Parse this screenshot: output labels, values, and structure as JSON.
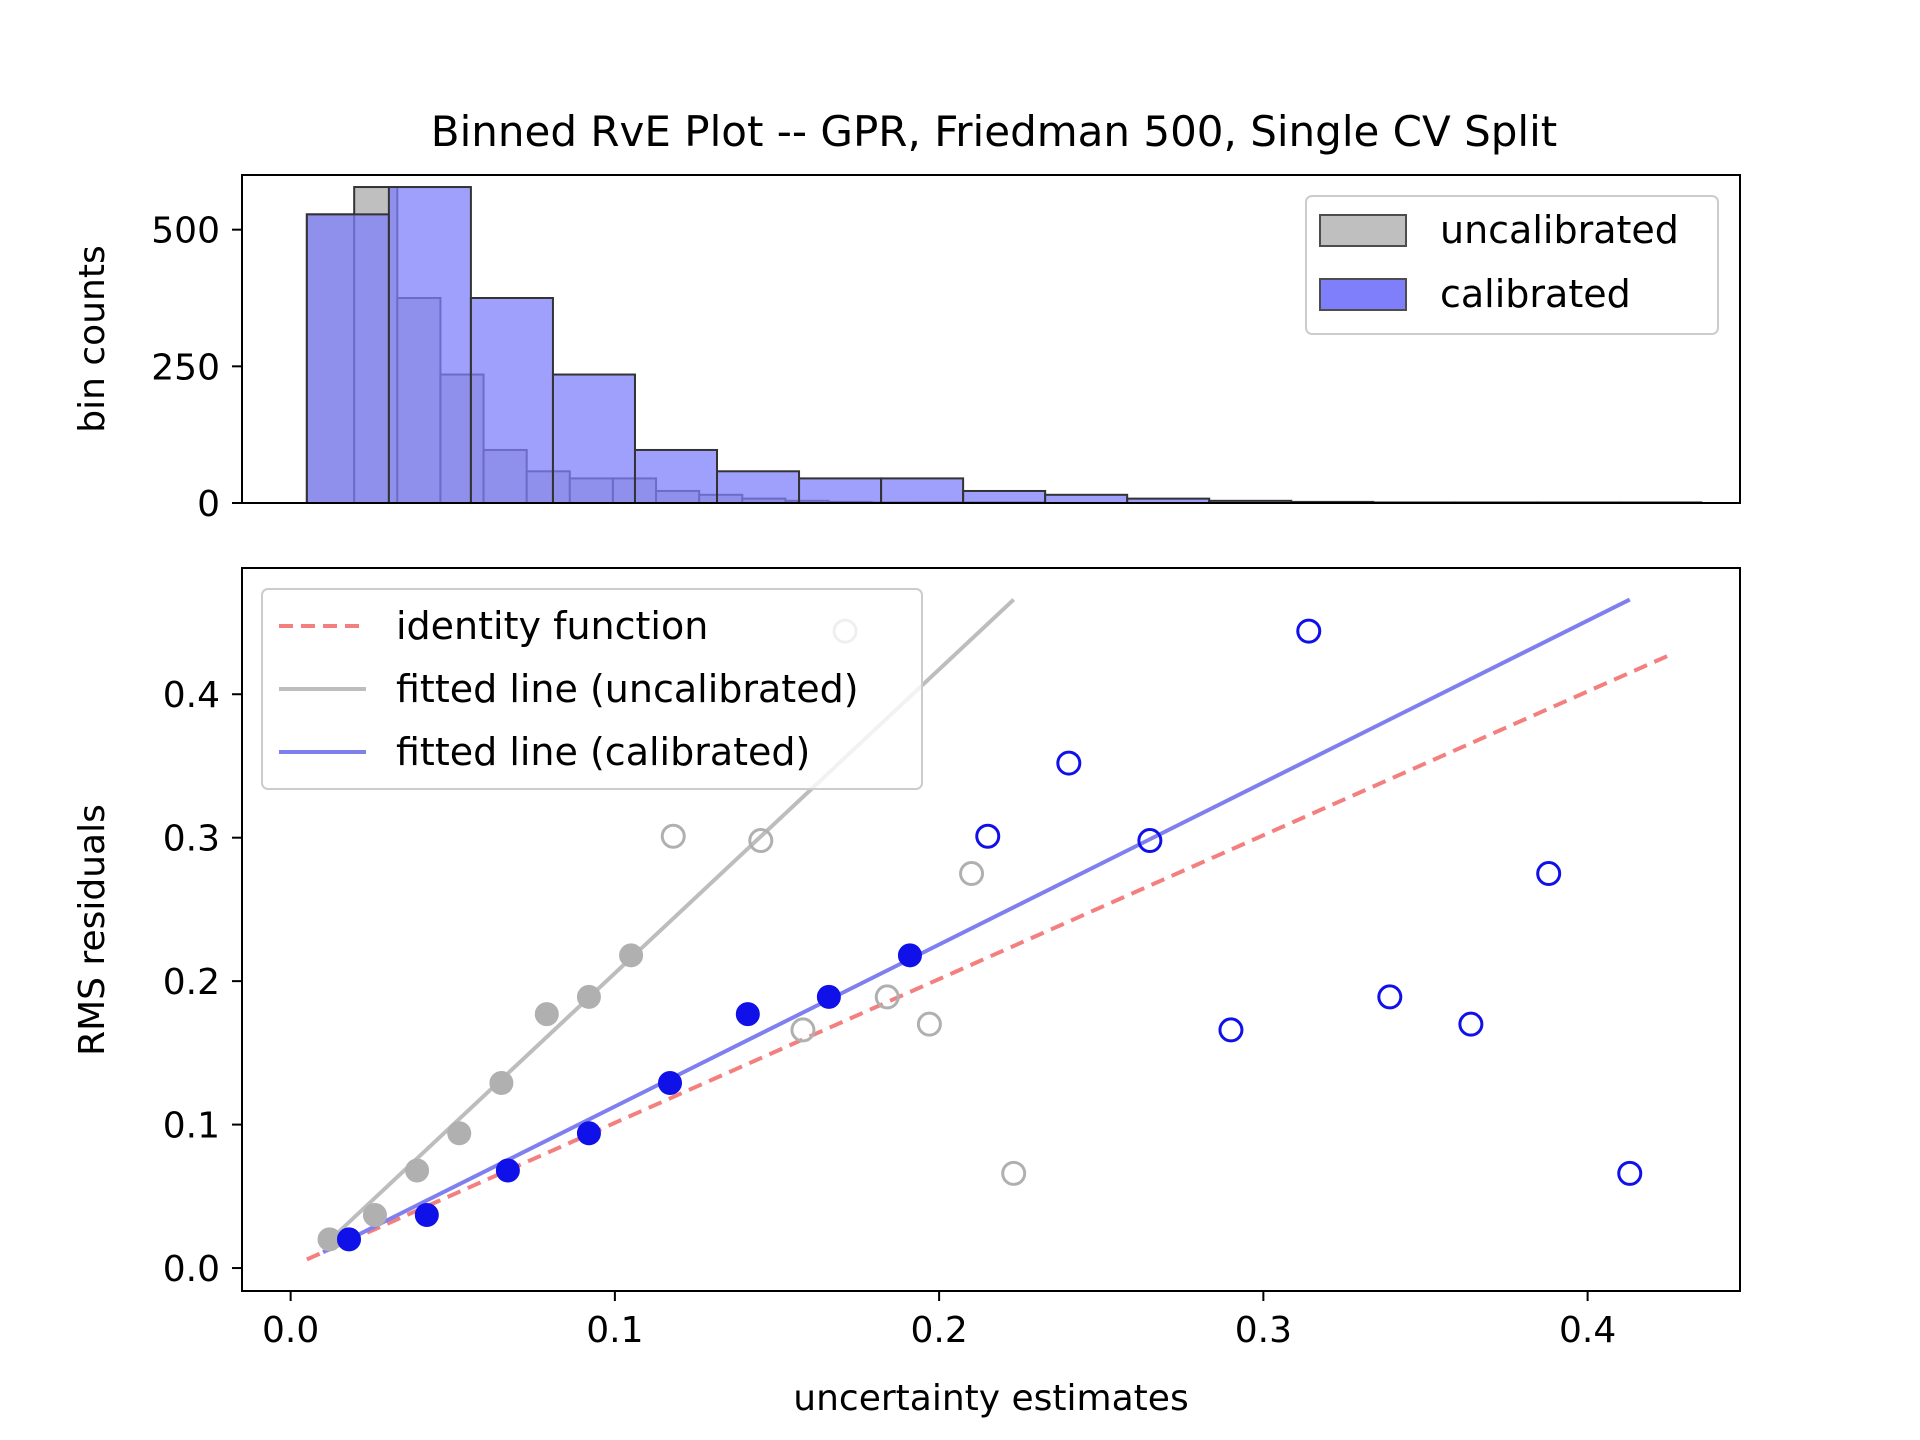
{
  "title": "Binned RvE Plot -- GPR, Friedman 500, Single CV Split",
  "colors": {
    "uncalibrated_fill": "#bfbfbf",
    "calibrated_fill": "#7f7ffb",
    "calibrated_point": "#1010e8",
    "uncalibrated_point": "#b0b0b0",
    "identity_line": "#f47f7f",
    "fit_uncalibrated": "#bdbdbd",
    "fit_calibrated": "#7f7ff0"
  },
  "chart_data": [
    {
      "type": "bar",
      "panel": "histogram",
      "xlabel": "",
      "ylabel": "bin counts",
      "ylim": [
        0,
        600
      ],
      "yticks": [
        0,
        250,
        500
      ],
      "xlim": [
        -0.015,
        0.447
      ],
      "legend": {
        "placement": "top-right",
        "entries": [
          {
            "label": "uncalibrated",
            "key": "uncalibrated"
          },
          {
            "label": "calibrated",
            "key": "calibrated"
          }
        ]
      },
      "series": [
        {
          "name": "uncalibrated",
          "bins": [
            {
              "x0": 0.005,
              "x1": 0.0196,
              "count": 528
            },
            {
              "x0": 0.0196,
              "x1": 0.0329,
              "count": 578
            },
            {
              "x0": 0.0329,
              "x1": 0.0462,
              "count": 375
            },
            {
              "x0": 0.0462,
              "x1": 0.0595,
              "count": 235
            },
            {
              "x0": 0.0595,
              "x1": 0.0728,
              "count": 97
            },
            {
              "x0": 0.0728,
              "x1": 0.0861,
              "count": 58
            },
            {
              "x0": 0.0861,
              "x1": 0.0994,
              "count": 45
            },
            {
              "x0": 0.0994,
              "x1": 0.1127,
              "count": 45
            },
            {
              "x0": 0.1127,
              "x1": 0.126,
              "count": 22
            },
            {
              "x0": 0.126,
              "x1": 0.1393,
              "count": 15
            },
            {
              "x0": 0.1393,
              "x1": 0.1526,
              "count": 8
            },
            {
              "x0": 0.1526,
              "x1": 0.1659,
              "count": 4
            },
            {
              "x0": 0.1659,
              "x1": 0.1792,
              "count": 2
            },
            {
              "x0": 0.1792,
              "x1": 0.1925,
              "count": 1
            },
            {
              "x0": 0.1925,
              "x1": 0.2058,
              "count": 1
            },
            {
              "x0": 0.2058,
              "x1": 0.2191,
              "count": 1
            },
            {
              "x0": 0.2191,
              "x1": 0.2324,
              "count": 1
            }
          ]
        },
        {
          "name": "calibrated",
          "bins": [
            {
              "x0": 0.005,
              "x1": 0.0303,
              "count": 528
            },
            {
              "x0": 0.0303,
              "x1": 0.0556,
              "count": 578
            },
            {
              "x0": 0.0556,
              "x1": 0.0809,
              "count": 375
            },
            {
              "x0": 0.0809,
              "x1": 0.1062,
              "count": 235
            },
            {
              "x0": 0.1062,
              "x1": 0.1315,
              "count": 97
            },
            {
              "x0": 0.1315,
              "x1": 0.1568,
              "count": 58
            },
            {
              "x0": 0.1568,
              "x1": 0.1821,
              "count": 45
            },
            {
              "x0": 0.1821,
              "x1": 0.2074,
              "count": 45
            },
            {
              "x0": 0.2074,
              "x1": 0.2327,
              "count": 22
            },
            {
              "x0": 0.2327,
              "x1": 0.258,
              "count": 15
            },
            {
              "x0": 0.258,
              "x1": 0.2833,
              "count": 8
            },
            {
              "x0": 0.2833,
              "x1": 0.3086,
              "count": 4
            },
            {
              "x0": 0.3086,
              "x1": 0.3339,
              "count": 2
            },
            {
              "x0": 0.3339,
              "x1": 0.3592,
              "count": 1
            },
            {
              "x0": 0.3592,
              "x1": 0.3845,
              "count": 1
            },
            {
              "x0": 0.3845,
              "x1": 0.4098,
              "count": 1
            },
            {
              "x0": 0.4098,
              "x1": 0.4351,
              "count": 1
            }
          ]
        }
      ]
    },
    {
      "type": "scatter",
      "panel": "rve",
      "xlabel": "uncertainty estimates",
      "ylabel": "RMS residuals",
      "xlim": [
        -0.015,
        0.447
      ],
      "ylim": [
        -0.016,
        0.488
      ],
      "xticks": [
        0.0,
        0.1,
        0.2,
        0.3,
        0.4
      ],
      "xtick_labels": [
        "0.0",
        "0.1",
        "0.2",
        "0.3",
        "0.4"
      ],
      "yticks": [
        0.0,
        0.1,
        0.2,
        0.3,
        0.4
      ],
      "ytick_labels": [
        "0.0",
        "0.1",
        "0.2",
        "0.3",
        "0.4"
      ],
      "legend": {
        "placement": "top-left",
        "entries": [
          {
            "label": "identity function",
            "key": "identity"
          },
          {
            "label": "fitted line (uncalibrated)",
            "key": "fit_uncal"
          },
          {
            "label": "fitted line (calibrated)",
            "key": "fit_cal"
          }
        ]
      },
      "lines": [
        {
          "key": "identity",
          "style": "dashed",
          "x": [
            0.005,
            0.425
          ],
          "y": [
            0.006,
            0.427
          ]
        },
        {
          "key": "fit_uncal",
          "style": "solid",
          "x": [
            0.01,
            0.223
          ],
          "y": [
            0.015,
            0.466
          ]
        },
        {
          "key": "fit_cal",
          "style": "solid",
          "x": [
            0.01,
            0.413
          ],
          "y": [
            0.011,
            0.466
          ]
        }
      ],
      "series": [
        {
          "name": "uncalibrated",
          "filled_points": [
            [
              0.012,
              0.02
            ],
            [
              0.026,
              0.037
            ],
            [
              0.039,
              0.068
            ],
            [
              0.052,
              0.094
            ],
            [
              0.065,
              0.129
            ],
            [
              0.079,
              0.177
            ],
            [
              0.092,
              0.189
            ],
            [
              0.105,
              0.218
            ]
          ],
          "open_points": [
            [
              0.118,
              0.301
            ],
            [
              0.145,
              0.298
            ],
            [
              0.158,
              0.166
            ],
            [
              0.171,
              0.444
            ],
            [
              0.184,
              0.189
            ],
            [
              0.197,
              0.17
            ],
            [
              0.21,
              0.275
            ],
            [
              0.223,
              0.066
            ]
          ]
        },
        {
          "name": "calibrated",
          "filled_points": [
            [
              0.018,
              0.02
            ],
            [
              0.042,
              0.037
            ],
            [
              0.067,
              0.068
            ],
            [
              0.092,
              0.094
            ],
            [
              0.117,
              0.129
            ],
            [
              0.141,
              0.177
            ],
            [
              0.166,
              0.189
            ],
            [
              0.191,
              0.218
            ]
          ],
          "open_points": [
            [
              0.215,
              0.301
            ],
            [
              0.24,
              0.352
            ],
            [
              0.265,
              0.298
            ],
            [
              0.29,
              0.166
            ],
            [
              0.314,
              0.444
            ],
            [
              0.339,
              0.189
            ],
            [
              0.364,
              0.17
            ],
            [
              0.388,
              0.275
            ],
            [
              0.413,
              0.066
            ]
          ]
        }
      ]
    }
  ]
}
